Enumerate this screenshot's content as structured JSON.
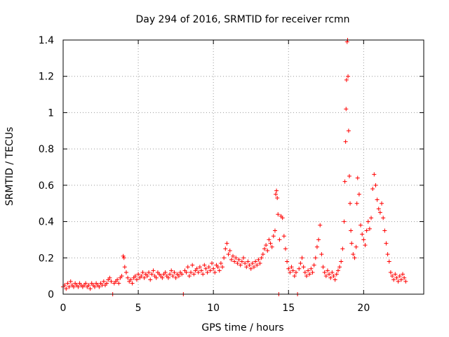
{
  "chart_data": {
    "type": "scatter",
    "title": "Day 294 of 2016, SRMTID for receiver rcmn",
    "xlabel": "GPS time / hours",
    "ylabel": "SRMTID / TECUs",
    "xlim": [
      0,
      24
    ],
    "ylim": [
      0,
      1.4
    ],
    "x_ticks": [
      0,
      5,
      10,
      15,
      20
    ],
    "x_tick_labels": [
      "0",
      "5",
      "10",
      "15",
      "20"
    ],
    "y_ticks": [
      0,
      0.2,
      0.4,
      0.6,
      0.8,
      1.0,
      1.2,
      1.4
    ],
    "y_tick_labels": [
      "0",
      "0.2",
      "0.4",
      "0.6",
      "0.8",
      "1",
      "1.2",
      "1.4"
    ],
    "grid": true,
    "marker": "+",
    "series_color": "#ff0000",
    "series": [
      {
        "name": "SRMTID",
        "points": [
          [
            0.0,
            0.04
          ],
          [
            0.1,
            0.05
          ],
          [
            0.2,
            0.03
          ],
          [
            0.3,
            0.06
          ],
          [
            0.4,
            0.04
          ],
          [
            0.5,
            0.07
          ],
          [
            0.6,
            0.05
          ],
          [
            0.7,
            0.04
          ],
          [
            0.8,
            0.06
          ],
          [
            0.9,
            0.05
          ],
          [
            1.0,
            0.04
          ],
          [
            1.1,
            0.06
          ],
          [
            1.2,
            0.05
          ],
          [
            1.3,
            0.04
          ],
          [
            1.4,
            0.05
          ],
          [
            1.5,
            0.06
          ],
          [
            1.6,
            0.04
          ],
          [
            1.7,
            0.05
          ],
          [
            1.8,
            0.03
          ],
          [
            1.9,
            0.06
          ],
          [
            2.0,
            0.05
          ],
          [
            2.1,
            0.04
          ],
          [
            2.2,
            0.06
          ],
          [
            2.3,
            0.05
          ],
          [
            2.4,
            0.04
          ],
          [
            2.5,
            0.06
          ],
          [
            2.6,
            0.05
          ],
          [
            2.7,
            0.07
          ],
          [
            2.8,
            0.05
          ],
          [
            2.9,
            0.06
          ],
          [
            3.0,
            0.08
          ],
          [
            3.1,
            0.09
          ],
          [
            3.2,
            0.07
          ],
          [
            3.3,
            0.0
          ],
          [
            3.4,
            0.06
          ],
          [
            3.5,
            0.07
          ],
          [
            3.6,
            0.08
          ],
          [
            3.7,
            0.06
          ],
          [
            3.8,
            0.09
          ],
          [
            3.9,
            0.1
          ],
          [
            4.0,
            0.21
          ],
          [
            4.05,
            0.2
          ],
          [
            4.1,
            0.15
          ],
          [
            4.2,
            0.12
          ],
          [
            4.3,
            0.09
          ],
          [
            4.4,
            0.07
          ],
          [
            4.5,
            0.08
          ],
          [
            4.6,
            0.06
          ],
          [
            4.7,
            0.09
          ],
          [
            4.8,
            0.1
          ],
          [
            4.9,
            0.08
          ],
          [
            5.0,
            0.11
          ],
          [
            5.1,
            0.09
          ],
          [
            5.2,
            0.1
          ],
          [
            5.3,
            0.12
          ],
          [
            5.4,
            0.09
          ],
          [
            5.5,
            0.11
          ],
          [
            5.6,
            0.1
          ],
          [
            5.7,
            0.12
          ],
          [
            5.8,
            0.08
          ],
          [
            5.9,
            0.11
          ],
          [
            6.0,
            0.13
          ],
          [
            6.1,
            0.1
          ],
          [
            6.2,
            0.09
          ],
          [
            6.3,
            0.12
          ],
          [
            6.4,
            0.11
          ],
          [
            6.5,
            0.1
          ],
          [
            6.6,
            0.09
          ],
          [
            6.7,
            0.11
          ],
          [
            6.8,
            0.12
          ],
          [
            6.9,
            0.1
          ],
          [
            7.0,
            0.09
          ],
          [
            7.1,
            0.11
          ],
          [
            7.2,
            0.13
          ],
          [
            7.3,
            0.1
          ],
          [
            7.4,
            0.12
          ],
          [
            7.5,
            0.09
          ],
          [
            7.6,
            0.11
          ],
          [
            7.7,
            0.1
          ],
          [
            7.8,
            0.12
          ],
          [
            7.9,
            0.11
          ],
          [
            8.0,
            0.0
          ],
          [
            8.1,
            0.13
          ],
          [
            8.2,
            0.12
          ],
          [
            8.3,
            0.15
          ],
          [
            8.4,
            0.1
          ],
          [
            8.5,
            0.12
          ],
          [
            8.6,
            0.16
          ],
          [
            8.7,
            0.11
          ],
          [
            8.8,
            0.13
          ],
          [
            8.9,
            0.14
          ],
          [
            9.0,
            0.12
          ],
          [
            9.1,
            0.15
          ],
          [
            9.2,
            0.13
          ],
          [
            9.3,
            0.11
          ],
          [
            9.4,
            0.16
          ],
          [
            9.5,
            0.14
          ],
          [
            9.6,
            0.12
          ],
          [
            9.7,
            0.15
          ],
          [
            9.8,
            0.13
          ],
          [
            9.9,
            0.17
          ],
          [
            10.0,
            0.14
          ],
          [
            10.1,
            0.12
          ],
          [
            10.2,
            0.16
          ],
          [
            10.3,
            0.15
          ],
          [
            10.4,
            0.13
          ],
          [
            10.5,
            0.17
          ],
          [
            10.6,
            0.15
          ],
          [
            10.7,
            0.2
          ],
          [
            10.8,
            0.25
          ],
          [
            10.9,
            0.28
          ],
          [
            11.0,
            0.22
          ],
          [
            11.1,
            0.24
          ],
          [
            11.2,
            0.19
          ],
          [
            11.3,
            0.21
          ],
          [
            11.4,
            0.18
          ],
          [
            11.5,
            0.2
          ],
          [
            11.6,
            0.17
          ],
          [
            11.7,
            0.19
          ],
          [
            11.8,
            0.16
          ],
          [
            11.9,
            0.18
          ],
          [
            12.0,
            0.2
          ],
          [
            12.1,
            0.17
          ],
          [
            12.2,
            0.15
          ],
          [
            12.3,
            0.18
          ],
          [
            12.4,
            0.16
          ],
          [
            12.5,
            0.14
          ],
          [
            12.6,
            0.17
          ],
          [
            12.7,
            0.15
          ],
          [
            12.8,
            0.18
          ],
          [
            12.9,
            0.16
          ],
          [
            13.0,
            0.19
          ],
          [
            13.1,
            0.17
          ],
          [
            13.2,
            0.2
          ],
          [
            13.3,
            0.22
          ],
          [
            13.4,
            0.25
          ],
          [
            13.5,
            0.27
          ],
          [
            13.6,
            0.24
          ],
          [
            13.7,
            0.3
          ],
          [
            13.8,
            0.28
          ],
          [
            13.9,
            0.26
          ],
          [
            14.0,
            0.32
          ],
          [
            14.1,
            0.35
          ],
          [
            14.15,
            0.55
          ],
          [
            14.2,
            0.57
          ],
          [
            14.25,
            0.53
          ],
          [
            14.3,
            0.44
          ],
          [
            14.35,
            0.0
          ],
          [
            14.4,
            0.3
          ],
          [
            14.5,
            0.43
          ],
          [
            14.6,
            0.42
          ],
          [
            14.7,
            0.32
          ],
          [
            14.8,
            0.25
          ],
          [
            14.9,
            0.18
          ],
          [
            15.0,
            0.14
          ],
          [
            15.1,
            0.12
          ],
          [
            15.2,
            0.15
          ],
          [
            15.3,
            0.13
          ],
          [
            15.4,
            0.1
          ],
          [
            15.5,
            0.12
          ],
          [
            15.6,
            0.0
          ],
          [
            15.7,
            0.14
          ],
          [
            15.8,
            0.17
          ],
          [
            15.9,
            0.2
          ],
          [
            16.0,
            0.15
          ],
          [
            16.1,
            0.12
          ],
          [
            16.2,
            0.1
          ],
          [
            16.3,
            0.13
          ],
          [
            16.4,
            0.11
          ],
          [
            16.5,
            0.14
          ],
          [
            16.6,
            0.12
          ],
          [
            16.7,
            0.16
          ],
          [
            16.8,
            0.2
          ],
          [
            16.9,
            0.26
          ],
          [
            17.0,
            0.3
          ],
          [
            17.1,
            0.38
          ],
          [
            17.2,
            0.22
          ],
          [
            17.3,
            0.15
          ],
          [
            17.4,
            0.12
          ],
          [
            17.5,
            0.1
          ],
          [
            17.6,
            0.13
          ],
          [
            17.7,
            0.11
          ],
          [
            17.8,
            0.09
          ],
          [
            17.9,
            0.12
          ],
          [
            18.0,
            0.1
          ],
          [
            18.1,
            0.08
          ],
          [
            18.2,
            0.11
          ],
          [
            18.3,
            0.13
          ],
          [
            18.4,
            0.15
          ],
          [
            18.5,
            0.18
          ],
          [
            18.6,
            0.25
          ],
          [
            18.7,
            0.4
          ],
          [
            18.75,
            0.62
          ],
          [
            18.8,
            0.84
          ],
          [
            18.83,
            1.02
          ],
          [
            18.86,
            1.18
          ],
          [
            18.9,
            1.39
          ],
          [
            18.93,
            1.4
          ],
          [
            18.96,
            1.2
          ],
          [
            19.0,
            0.9
          ],
          [
            19.05,
            0.65
          ],
          [
            19.1,
            0.5
          ],
          [
            19.15,
            0.35
          ],
          [
            19.2,
            0.28
          ],
          [
            19.3,
            0.22
          ],
          [
            19.4,
            0.2
          ],
          [
            19.5,
            0.26
          ],
          [
            19.55,
            0.5
          ],
          [
            19.6,
            0.64
          ],
          [
            19.7,
            0.55
          ],
          [
            19.8,
            0.38
          ],
          [
            19.9,
            0.33
          ],
          [
            20.0,
            0.3
          ],
          [
            20.1,
            0.27
          ],
          [
            20.2,
            0.35
          ],
          [
            20.3,
            0.4
          ],
          [
            20.4,
            0.36
          ],
          [
            20.5,
            0.42
          ],
          [
            20.6,
            0.58
          ],
          [
            20.7,
            0.66
          ],
          [
            20.8,
            0.6
          ],
          [
            20.9,
            0.52
          ],
          [
            21.0,
            0.47
          ],
          [
            21.1,
            0.45
          ],
          [
            21.2,
            0.5
          ],
          [
            21.3,
            0.42
          ],
          [
            21.4,
            0.35
          ],
          [
            21.5,
            0.28
          ],
          [
            21.6,
            0.22
          ],
          [
            21.7,
            0.18
          ],
          [
            21.8,
            0.12
          ],
          [
            21.9,
            0.1
          ],
          [
            22.0,
            0.08
          ],
          [
            22.1,
            0.11
          ],
          [
            22.2,
            0.09
          ],
          [
            22.3,
            0.07
          ],
          [
            22.4,
            0.1
          ],
          [
            22.5,
            0.08
          ],
          [
            22.6,
            0.11
          ],
          [
            22.7,
            0.09
          ],
          [
            22.8,
            0.07
          ]
        ]
      }
    ]
  }
}
